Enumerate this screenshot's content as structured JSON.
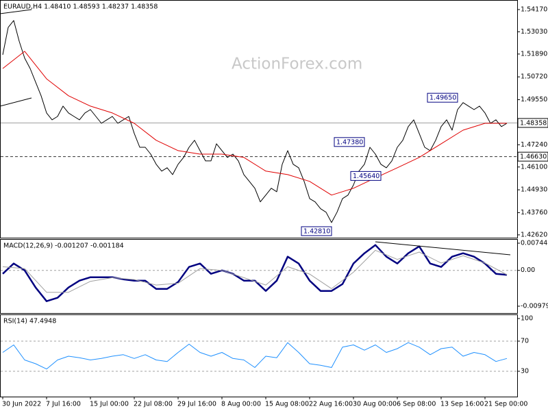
{
  "chart_data": [
    {
      "type": "line",
      "title": "EURAUD,H4  1.48410 1.48593 1.48237 1.48358",
      "watermark": "ActionForex.com",
      "xlim": [
        0,
        92
      ],
      "ylim": [
        1.4244,
        1.5459
      ],
      "yticks": [
        {
          "value": 1.5417,
          "label": "1.54170"
        },
        {
          "value": 1.5303,
          "label": "1.53030"
        },
        {
          "value": 1.5189,
          "label": "1.51890"
        },
        {
          "value": 1.5072,
          "label": "1.50720"
        },
        {
          "value": 1.4955,
          "label": "1.49550"
        },
        {
          "value": 1.4724,
          "label": "1.47240"
        },
        {
          "value": 1.461,
          "label": "1.46100"
        },
        {
          "value": 1.4493,
          "label": "1.44930"
        },
        {
          "value": 1.4376,
          "label": "1.43760"
        },
        {
          "value": 1.4262,
          "label": "1.42620"
        }
      ],
      "lines": [
        {
          "value": 1.48358,
          "label": "1.48358",
          "dash": false,
          "color": "#a0a0a0"
        },
        {
          "value": 1.4663,
          "label": "1.46630",
          "dash": true,
          "color": "#303030"
        }
      ],
      "annotations": [
        {
          "value": 1.4965,
          "label": "1.49650",
          "x": 83
        },
        {
          "value": 1.4738,
          "label": "1.47380",
          "x": 66
        },
        {
          "value": 1.4564,
          "label": "1.45640",
          "x": 69
        },
        {
          "value": 1.4281,
          "label": "1.42810",
          "x": 60
        }
      ],
      "series": [
        {
          "color": "#000000",
          "width": 1,
          "x": [
            0,
            1,
            2,
            3,
            4,
            5,
            6,
            7,
            8,
            9,
            10,
            11,
            12,
            13,
            14,
            15,
            16,
            17,
            18,
            19,
            20,
            21,
            22,
            23,
            24,
            25,
            26,
            27,
            28,
            29,
            30,
            31,
            32,
            33,
            34,
            35,
            36,
            37,
            38,
            39,
            40,
            41,
            42,
            43,
            44,
            45,
            46,
            47,
            48,
            49,
            50,
            51,
            52,
            53,
            54,
            55,
            56,
            57,
            58,
            59,
            60,
            61,
            62,
            63,
            64,
            65,
            66,
            67,
            68,
            69,
            70,
            71,
            72,
            73,
            74,
            75,
            76,
            77,
            78,
            79,
            80,
            81,
            82,
            83,
            84,
            85,
            86,
            87,
            88,
            89,
            90,
            91,
            92
          ],
          "values": [
            1.5185,
            1.5326,
            1.5361,
            1.5255,
            1.5168,
            1.5115,
            1.5045,
            1.4975,
            1.4887,
            1.4852,
            1.4869,
            1.4922,
            1.4887,
            1.4869,
            1.4852,
            1.4887,
            1.4904,
            1.4869,
            1.4834,
            1.4852,
            1.4869,
            1.4834,
            1.4852,
            1.4869,
            1.4782,
            1.4711,
            1.4711,
            1.4676,
            1.4624,
            1.4589,
            1.4606,
            1.4571,
            1.4624,
            1.4659,
            1.4711,
            1.4747,
            1.4694,
            1.4641,
            1.4641,
            1.4729,
            1.4694,
            1.4659,
            1.4676,
            1.4641,
            1.4571,
            1.4536,
            1.4501,
            1.4431,
            1.4466,
            1.4501,
            1.4483,
            1.4624,
            1.4694,
            1.4624,
            1.4606,
            1.4536,
            1.4448,
            1.4431,
            1.4396,
            1.4378,
            1.4325,
            1.4378,
            1.4448,
            1.4466,
            1.4518,
            1.4589,
            1.4624,
            1.4711,
            1.4676,
            1.4624,
            1.4606,
            1.4641,
            1.4711,
            1.4747,
            1.4817,
            1.4852,
            1.4782,
            1.4711,
            1.4694,
            1.4747,
            1.4817,
            1.4852,
            1.4799,
            1.4904,
            1.494,
            1.4922,
            1.4904,
            1.4922,
            1.4887,
            1.4834,
            1.4852,
            1.4817,
            1.4834
          ]
        },
        {
          "color": "#e00000",
          "width": 1,
          "x": [
            0,
            4,
            8,
            12,
            16,
            20,
            24,
            28,
            32,
            36,
            40,
            44,
            48,
            52,
            56,
            60,
            64,
            68,
            72,
            76,
            80,
            84,
            88,
            92
          ],
          "values": [
            1.5115,
            1.5203,
            1.5062,
            1.4975,
            1.4922,
            1.4887,
            1.4834,
            1.4747,
            1.4694,
            1.4676,
            1.4676,
            1.4659,
            1.4589,
            1.4571,
            1.4536,
            1.4466,
            1.4501,
            1.4554,
            1.4606,
            1.4659,
            1.4729,
            1.4799,
            1.4834,
            1.4834
          ]
        }
      ]
    },
    {
      "type": "line",
      "title": "MACD(12,26,9) -0.001207 -0.001184",
      "xlim": [
        0,
        92
      ],
      "ylim": [
        -0.01167,
        0.00838
      ],
      "yticks": [
        0.007441,
        {
          "value": 0,
          "label": "0.00"
        },
        -0.009794
      ],
      "levels": [
        0
      ],
      "series": [
        {
          "color": "#000080",
          "width": 2.5,
          "x": [
            0,
            2,
            4,
            6,
            8,
            10,
            12,
            14,
            16,
            18,
            20,
            22,
            24,
            26,
            28,
            30,
            32,
            34,
            36,
            38,
            40,
            42,
            44,
            46,
            48,
            50,
            52,
            54,
            56,
            58,
            60,
            62,
            64,
            66,
            68,
            70,
            72,
            74,
            76,
            78,
            80,
            82,
            84,
            86,
            88,
            90,
            92
          ],
          "values": [
            -0.00094,
            0.00187,
            0,
            -0.00468,
            -0.00843,
            -0.00749,
            -0.00468,
            -0.00281,
            -0.00187,
            -0.00187,
            -0.00187,
            -0.00243,
            -0.00281,
            -0.00281,
            -0.00506,
            -0.00506,
            -0.00318,
            0.00094,
            0.00187,
            -0.00094,
            0,
            -0.00094,
            -0.00281,
            -0.00281,
            -0.00562,
            -0.00281,
            0.00375,
            0.00187,
            -0.00281,
            -0.00562,
            -0.00562,
            -0.00375,
            0.00187,
            0.00468,
            0.00693,
            0.00375,
            0.00187,
            0.00468,
            0.00656,
            0.00187,
            0.00094,
            0.00375,
            0.00468,
            0.00375,
            0.00187,
            -0.00094,
            -0.00121
          ]
        },
        {
          "color": "#a0a0a0",
          "width": 1,
          "x": [
            0,
            4,
            8,
            12,
            16,
            20,
            24,
            28,
            32,
            36,
            40,
            44,
            48,
            52,
            56,
            60,
            64,
            68,
            72,
            76,
            80,
            84,
            88,
            92
          ],
          "values": [
            0.001,
            0.0005,
            -0.006,
            -0.006,
            -0.003,
            -0.002,
            -0.0025,
            -0.004,
            -0.0035,
            0.0005,
            0,
            -0.002,
            -0.004,
            0.001,
            -0.001,
            -0.005,
            -0.0005,
            0.0055,
            0.003,
            0.005,
            0.002,
            0.004,
            0.002,
            -0.00118
          ]
        }
      ]
    },
    {
      "type": "line",
      "title": "RSI(14) 47.4948",
      "xlim": [
        0,
        92
      ],
      "ylim": [
        0,
        100
      ],
      "yticks": [
        100,
        70,
        30
      ],
      "levels": [
        70,
        30
      ],
      "xticks": [
        {
          "value": 0,
          "label": "30 Jun 2022"
        },
        {
          "value": 8,
          "label": "7 Jul 16:00"
        },
        {
          "value": 16,
          "label": "15 Jul 00:00"
        },
        {
          "value": 24,
          "label": "22 Jul 08:00"
        },
        {
          "value": 32,
          "label": "29 Jul 16:00"
        },
        {
          "value": 40,
          "label": "8 Aug 00:00"
        },
        {
          "value": 48,
          "label": "15 Aug 08:00"
        },
        {
          "value": 56,
          "label": "22 Aug 16:00"
        },
        {
          "value": 64,
          "label": "30 Aug 00:00"
        },
        {
          "value": 72,
          "label": "6 Sep 08:00"
        },
        {
          "value": 80,
          "label": "13 Sep 16:00"
        },
        {
          "value": 88,
          "label": "21 Sep 00:00"
        }
      ],
      "series": [
        {
          "color": "#1e90ff",
          "width": 1,
          "x": [
            0,
            2,
            4,
            6,
            8,
            10,
            12,
            14,
            16,
            18,
            20,
            22,
            24,
            26,
            28,
            30,
            32,
            34,
            36,
            38,
            40,
            42,
            44,
            46,
            48,
            50,
            52,
            54,
            56,
            58,
            60,
            62,
            64,
            66,
            68,
            70,
            72,
            74,
            76,
            78,
            80,
            82,
            84,
            86,
            88,
            90,
            92
          ],
          "values": [
            55,
            65,
            45,
            40,
            33,
            45,
            50,
            48,
            45,
            47,
            50,
            52,
            47,
            52,
            45,
            43,
            55,
            66,
            55,
            50,
            55,
            47,
            45,
            35,
            50,
            48,
            68,
            55,
            40,
            38,
            35,
            62,
            65,
            58,
            65,
            55,
            60,
            68,
            62,
            52,
            60,
            62,
            50,
            55,
            52,
            43,
            47
          ]
        }
      ]
    }
  ]
}
